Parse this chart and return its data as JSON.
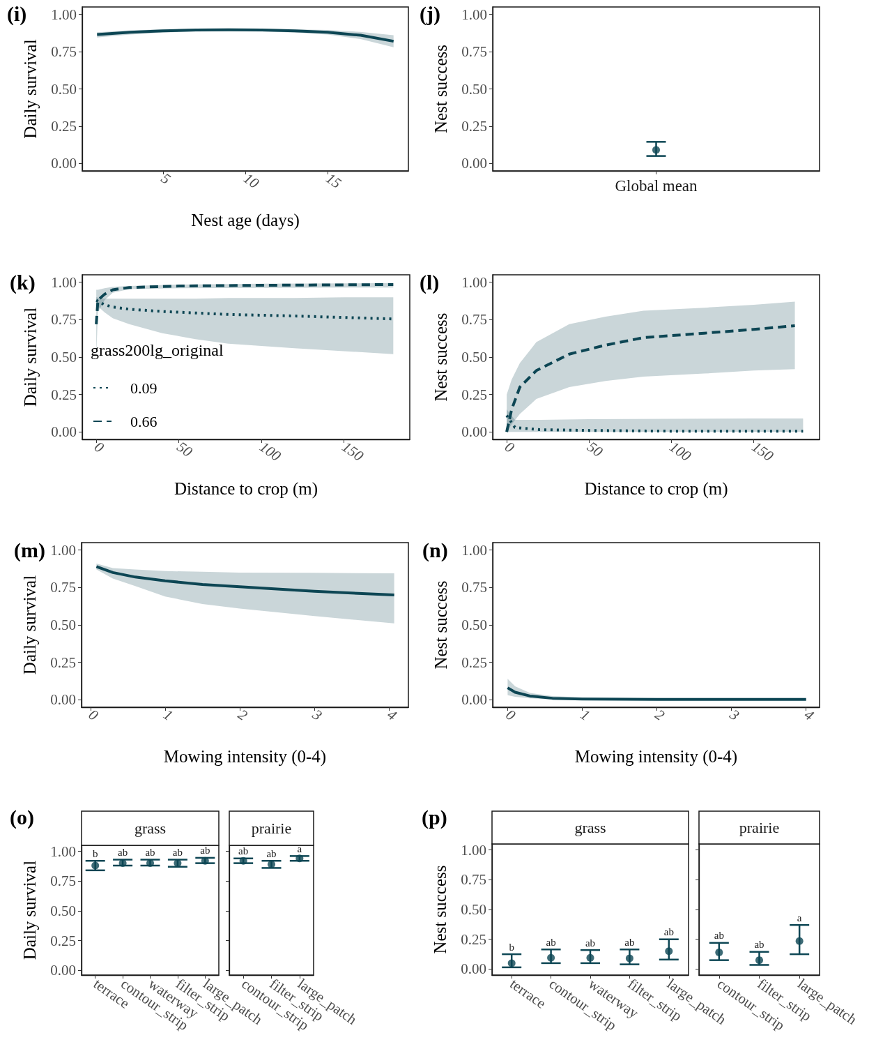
{
  "chart_data": [
    {
      "type": "line",
      "annotations": [
        "(i)"
      ],
      "xlabel": "Nest age (days)",
      "ylabel": "Daily survival",
      "xlim": [
        0.1,
        19.9
      ],
      "xticks": [
        5,
        10,
        15
      ],
      "ylim": [
        -0.05,
        1.05
      ],
      "yticks": [
        {
          "value": 0,
          "label": "0.00"
        },
        {
          "value": 0.25,
          "label": "0.25"
        },
        {
          "value": 0.5,
          "label": "0.50"
        },
        {
          "value": 0.75,
          "label": "0.75"
        },
        {
          "value": 1,
          "label": "1.00"
        }
      ],
      "grid": false,
      "legend": false,
      "marker": "none",
      "line_style": "solid",
      "series": [
        {
          "color": "#0d4654",
          "x": [
            1,
            3,
            5,
            7,
            9,
            11,
            13,
            15,
            17,
            19
          ],
          "values": [
            0.865,
            0.88,
            0.89,
            0.895,
            0.897,
            0.895,
            0.89,
            0.88,
            0.86,
            0.82
          ],
          "lower": [
            0.845,
            0.865,
            0.878,
            0.885,
            0.887,
            0.885,
            0.878,
            0.865,
            0.835,
            0.78
          ],
          "upper": [
            0.88,
            0.893,
            0.9,
            0.905,
            0.907,
            0.905,
            0.9,
            0.895,
            0.883,
            0.86
          ]
        }
      ]
    },
    {
      "type": "scatter",
      "annotations": [
        "(j)"
      ],
      "ylabel": "Nest success",
      "categories": [
        "Global mean"
      ],
      "ylim": [
        -0.05,
        1.05
      ],
      "yticks": [
        {
          "value": 0,
          "label": "0.00"
        },
        {
          "value": 0.25,
          "label": "0.25"
        },
        {
          "value": 0.5,
          "label": "0.50"
        },
        {
          "value": 0.75,
          "label": "0.75"
        },
        {
          "value": 1,
          "label": "1.00"
        }
      ],
      "grid": false,
      "legend": false,
      "marker": "circle",
      "series": [
        {
          "color": "#0d4654",
          "values": [
            0.09
          ],
          "errors": [
            [
              0.05,
              0.145
            ]
          ]
        }
      ]
    },
    {
      "type": "line",
      "annotations": [
        "(k)"
      ],
      "xlabel": "Distance to crop (m)",
      "ylabel": "Daily survival",
      "legend_title": "grass200lg_original",
      "legend": "bottom left",
      "xlim": [
        -8.5,
        190
      ],
      "xticks": [
        0,
        50,
        100,
        150
      ],
      "ylim": [
        -0.05,
        1.05
      ],
      "yticks": [
        {
          "value": 0,
          "label": "0.00"
        },
        {
          "value": 0.25,
          "label": "0.25"
        },
        {
          "value": 0.5,
          "label": "0.50"
        },
        {
          "value": 0.75,
          "label": "0.75"
        },
        {
          "value": 1,
          "label": "1.00"
        }
      ],
      "grid": false,
      "marker": "none",
      "series": [
        {
          "name": "0.09",
          "color": "#0d4654",
          "line_style": "dotted",
          "x": [
            0,
            5,
            10,
            20,
            40,
            60,
            80,
            100,
            120,
            150,
            180
          ],
          "values": [
            0.88,
            0.85,
            0.835,
            0.82,
            0.805,
            0.795,
            0.785,
            0.78,
            0.775,
            0.765,
            0.755
          ],
          "lower": [
            0.85,
            0.8,
            0.76,
            0.72,
            0.66,
            0.62,
            0.59,
            0.575,
            0.56,
            0.54,
            0.52
          ],
          "upper": [
            0.9,
            0.89,
            0.89,
            0.89,
            0.89,
            0.89,
            0.895,
            0.895,
            0.895,
            0.9,
            0.9
          ]
        },
        {
          "name": "0.66",
          "color": "#0d4654",
          "line_style": "dashed",
          "x": [
            0,
            1,
            5,
            10,
            20,
            50,
            100,
            150,
            180
          ],
          "values": [
            0.72,
            0.88,
            0.92,
            0.95,
            0.965,
            0.975,
            0.98,
            0.983,
            0.985
          ],
          "lower": [
            0.5,
            0.8,
            0.88,
            0.93,
            0.955,
            0.96,
            0.963,
            0.965,
            0.965
          ],
          "upper": [
            0.95,
            0.95,
            0.96,
            0.97,
            0.975,
            0.985,
            0.99,
            0.993,
            0.995
          ]
        }
      ]
    },
    {
      "type": "line",
      "annotations": [
        "(l)"
      ],
      "xlabel": "Distance to crop (m)",
      "ylabel": "Nest success",
      "xlim": [
        -8.5,
        190
      ],
      "xticks": [
        0,
        50,
        100,
        150
      ],
      "ylim": [
        -0.05,
        1.05
      ],
      "yticks": [
        {
          "value": 0,
          "label": "0.00"
        },
        {
          "value": 0.25,
          "label": "0.25"
        },
        {
          "value": 0.5,
          "label": "0.50"
        },
        {
          "value": 0.75,
          "label": "0.75"
        },
        {
          "value": 1,
          "label": "1.00"
        }
      ],
      "grid": false,
      "legend": false,
      "marker": "none",
      "series": [
        {
          "color": "#0d4654",
          "line_style": "dotted",
          "x": [
            0,
            5,
            20,
            50,
            100,
            150,
            180
          ],
          "values": [
            0.11,
            0.03,
            0.015,
            0.01,
            0.005,
            0.005,
            0.005
          ],
          "lower": [
            0,
            0,
            0,
            0,
            0,
            0,
            0
          ],
          "upper": [
            0.15,
            0.08,
            0.08,
            0.085,
            0.088,
            0.09,
            0.09
          ]
        },
        {
          "color": "#0d4654",
          "line_style": "dashed",
          "x": [
            0,
            3,
            8,
            18,
            38,
            60,
            83,
            120,
            150,
            175
          ],
          "values": [
            0,
            0.15,
            0.3,
            0.41,
            0.52,
            0.58,
            0.63,
            0.66,
            0.685,
            0.71
          ],
          "lower": [
            0,
            0.05,
            0.12,
            0.22,
            0.3,
            0.34,
            0.37,
            0.39,
            0.41,
            0.42
          ],
          "upper": [
            0.25,
            0.35,
            0.46,
            0.6,
            0.72,
            0.77,
            0.81,
            0.83,
            0.85,
            0.87
          ]
        }
      ]
    },
    {
      "type": "line",
      "annotations": [
        "(m)"
      ],
      "xlabel": "Mowing intensity (0-4)",
      "ylabel": "Daily survival",
      "xlim": [
        -0.12,
        4.26
      ],
      "xticks": [
        0,
        1,
        2,
        3,
        4
      ],
      "ylim": [
        -0.05,
        1.05
      ],
      "yticks": [
        {
          "value": 0,
          "label": "0.00"
        },
        {
          "value": 0.25,
          "label": "0.25"
        },
        {
          "value": 0.5,
          "label": "0.50"
        },
        {
          "value": 0.75,
          "label": "0.75"
        },
        {
          "value": 1,
          "label": "1.00"
        }
      ],
      "grid": false,
      "legend": false,
      "marker": "none",
      "line_style": "solid",
      "series": [
        {
          "color": "#0d4654",
          "x": [
            0.08,
            0.3,
            0.6,
            1,
            1.5,
            2,
            3,
            4.07
          ],
          "values": [
            0.89,
            0.85,
            0.82,
            0.795,
            0.77,
            0.755,
            0.725,
            0.7
          ],
          "lower": [
            0.87,
            0.81,
            0.76,
            0.69,
            0.64,
            0.61,
            0.56,
            0.51
          ],
          "upper": [
            0.91,
            0.88,
            0.87,
            0.86,
            0.855,
            0.85,
            0.848,
            0.845
          ]
        }
      ]
    },
    {
      "type": "line",
      "annotations": [
        "(n)"
      ],
      "xlabel": "Mowing intensity (0-4)",
      "ylabel": "Nest success",
      "xlim": [
        -0.2,
        4.18
      ],
      "xticks": [
        0,
        1,
        2,
        3,
        4
      ],
      "ylim": [
        -0.05,
        1.05
      ],
      "yticks": [
        {
          "value": 0,
          "label": "0.00"
        },
        {
          "value": 0.25,
          "label": "0.25"
        },
        {
          "value": 0.5,
          "label": "0.50"
        },
        {
          "value": 0.75,
          "label": "0.75"
        },
        {
          "value": 1,
          "label": "1.00"
        }
      ],
      "grid": false,
      "legend": false,
      "marker": "none",
      "line_style": "solid",
      "series": [
        {
          "color": "#0d4654",
          "x": [
            0,
            0.1,
            0.3,
            0.6,
            1,
            2,
            3,
            4
          ],
          "values": [
            0.08,
            0.05,
            0.025,
            0.01,
            0.005,
            0.003,
            0.002,
            0.002
          ],
          "lower": [
            0.03,
            0.02,
            0.01,
            0.003,
            0,
            0,
            0,
            0
          ],
          "upper": [
            0.14,
            0.09,
            0.045,
            0.025,
            0.015,
            0.01,
            0.007,
            0.005
          ]
        }
      ]
    },
    {
      "type": "scatter",
      "title": "grass",
      "annotations": [
        "(o)",
        {
          "text": "b",
          "x": "terrace",
          "y": 0.92
        },
        {
          "text": "ab",
          "x": "contour_strip",
          "y": 0.93
        },
        {
          "text": "ab",
          "x": "waterway",
          "y": 0.93
        },
        {
          "text": "ab",
          "x": "filter_strip",
          "y": 0.93
        },
        {
          "text": "ab",
          "x": "large_patch",
          "y": 0.945
        }
      ],
      "ylabel": "Daily survival",
      "categories": [
        "terrace",
        "contour_strip",
        "waterway",
        "filter_strip",
        "large_patch"
      ],
      "ylim": [
        -0.04,
        1.05
      ],
      "yticks": [
        {
          "value": 0,
          "label": "0.00"
        },
        {
          "value": 0.25,
          "label": "0.25"
        },
        {
          "value": 0.5,
          "label": "0.50"
        },
        {
          "value": 0.75,
          "label": "0.75"
        },
        {
          "value": 1,
          "label": "1.00"
        }
      ],
      "grid": false,
      "legend": false,
      "marker": "circle",
      "series": [
        {
          "color": "#0d4654",
          "values": [
            0.88,
            0.9,
            0.9,
            0.9,
            0.92
          ],
          "errors": [
            [
              0.84,
              0.92
            ],
            [
              0.88,
              0.93
            ],
            [
              0.88,
              0.93
            ],
            [
              0.87,
              0.93
            ],
            [
              0.9,
              0.945
            ]
          ]
        }
      ]
    },
    {
      "type": "scatter",
      "title": "prairie",
      "tick_labels": "x",
      "annotations": [
        {
          "text": "ab",
          "x": "contour_strip",
          "y": 0.94
        },
        {
          "text": "ab",
          "x": "filter_strip",
          "y": 0.92
        },
        {
          "text": "a",
          "x": "large_patch",
          "y": 0.96
        }
      ],
      "categories": [
        "contour_strip",
        "filter_strip",
        "large_patch"
      ],
      "ylim": [
        -0.04,
        1.05
      ],
      "yticks": [
        {
          "value": 0,
          "label": null
        },
        {
          "value": 0.25,
          "label": null
        },
        {
          "value": 0.5,
          "label": null
        },
        {
          "value": 0.75,
          "label": null
        },
        {
          "value": 1,
          "label": null
        }
      ],
      "grid": false,
      "legend": false,
      "marker": "circle",
      "series": [
        {
          "color": "#0d4654",
          "values": [
            0.92,
            0.89,
            0.94
          ],
          "errors": [
            [
              0.9,
              0.94
            ],
            [
              0.86,
              0.92
            ],
            [
              0.92,
              0.96
            ]
          ]
        }
      ]
    },
    {
      "type": "scatter",
      "title": "grass",
      "annotations": [
        "(p)",
        {
          "text": "b",
          "x": "terrace",
          "y": 0.125
        },
        {
          "text": "ab",
          "x": "contour_strip",
          "y": 0.165
        },
        {
          "text": "ab",
          "x": "waterway",
          "y": 0.16
        },
        {
          "text": "ab",
          "x": "filter_strip",
          "y": 0.165
        },
        {
          "text": "ab",
          "x": "large_patch",
          "y": 0.25
        }
      ],
      "ylabel": "Nest success",
      "categories": [
        "terrace",
        "contour_strip",
        "waterway",
        "filter_strip",
        "large_patch"
      ],
      "ylim": [
        -0.05,
        1.05
      ],
      "yticks": [
        {
          "value": 0,
          "label": "0.00"
        },
        {
          "value": 0.25,
          "label": "0.25"
        },
        {
          "value": 0.5,
          "label": "0.50"
        },
        {
          "value": 0.75,
          "label": "0.75"
        },
        {
          "value": 1,
          "label": "1.00"
        }
      ],
      "grid": false,
      "legend": false,
      "marker": "circle",
      "series": [
        {
          "color": "#0d4654",
          "values": [
            0.05,
            0.095,
            0.095,
            0.09,
            0.15
          ],
          "errors": [
            [
              0.015,
              0.125
            ],
            [
              0.05,
              0.165
            ],
            [
              0.05,
              0.16
            ],
            [
              0.04,
              0.165
            ],
            [
              0.08,
              0.25
            ]
          ]
        }
      ]
    },
    {
      "type": "scatter",
      "title": "prairie",
      "tick_labels": "x",
      "annotations": [
        {
          "text": "ab",
          "x": "contour_strip",
          "y": 0.22
        },
        {
          "text": "ab",
          "x": "filter_strip",
          "y": 0.145
        },
        {
          "text": "a",
          "x": "large_patch",
          "y": 0.37
        }
      ],
      "categories": [
        "contour_strip",
        "filter_strip",
        "large_patch"
      ],
      "ylim": [
        -0.05,
        1.05
      ],
      "yticks": [
        {
          "value": 0,
          "label": null
        },
        {
          "value": 0.25,
          "label": null
        },
        {
          "value": 0.5,
          "label": null
        },
        {
          "value": 0.75,
          "label": null
        },
        {
          "value": 1,
          "label": null
        }
      ],
      "grid": false,
      "legend": false,
      "marker": "circle",
      "series": [
        {
          "color": "#0d4654",
          "values": [
            0.14,
            0.075,
            0.235
          ],
          "errors": [
            [
              0.075,
              0.22
            ],
            [
              0.035,
              0.145
            ],
            [
              0.125,
              0.37
            ]
          ]
        }
      ]
    }
  ]
}
